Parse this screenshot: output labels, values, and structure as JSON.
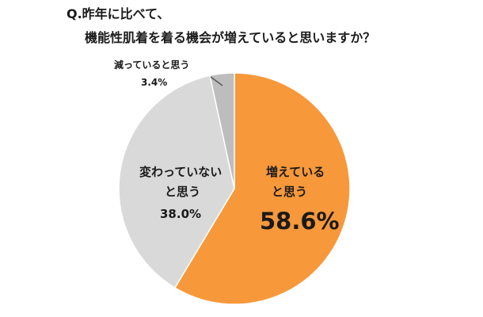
{
  "question": {
    "line1": "Q.昨年に比べて、",
    "line2": "機能性肌着を着る機会が増えていると思いますか？"
  },
  "chart_data": {
    "type": "pie",
    "categories": [
      "増えていると思う",
      "変わっていないと思う",
      "減っていると思う"
    ],
    "values": [
      58.6,
      38.0,
      3.4
    ],
    "value_labels": [
      "58.6%",
      "38.0%",
      "3.4%"
    ],
    "colors": [
      "#f7983a",
      "#d9d9d9",
      "#bdbdbd"
    ],
    "start": "12 o'clock, clockwise"
  },
  "labels": {
    "increase": {
      "line1": "増えている",
      "line2": "と思う",
      "value": "58.6%"
    },
    "same": {
      "line1": "変わっていない",
      "line2": "と思う",
      "value": "38.0%"
    },
    "decrease": {
      "line1": "減っていると思う",
      "value": "3.4%"
    }
  }
}
